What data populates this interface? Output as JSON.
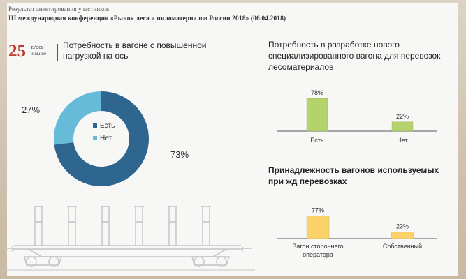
{
  "header": {
    "subtitle": "Результат анкетирования участников",
    "conference": "III международная конференция «Рынок леса и пиломатериалов России 2018» (06.04.2018)"
  },
  "load_badge": {
    "value": "25",
    "unit_line1": "т./ось",
    "unit_line2": "и выше"
  },
  "colors": {
    "dark_blue": "#2f6690",
    "light_blue": "#66bcd8",
    "green": "#b5d36b",
    "yellow": "#fbd26a",
    "red": "#c0392b"
  },
  "icons": [
    "timber-wagon-illustration"
  ],
  "chart_data": [
    {
      "type": "pie",
      "title": "Потребность в вагоне с повышенной нагрузкой на ось",
      "slices": [
        {
          "label": "Есть",
          "value": 73,
          "label_text": "73%",
          "color": "#2f6690"
        },
        {
          "label": "Нет",
          "value": 27,
          "label_text": "27%",
          "color": "#66bcd8"
        }
      ],
      "legend": {
        "placement": "center",
        "items": [
          "Есть",
          "Нет"
        ]
      }
    },
    {
      "type": "bar",
      "title": "Потребность в разработке нового специализированного вагона для перевозок лесоматериалов",
      "categories": [
        "Есть",
        "Нет"
      ],
      "values": [
        78,
        22
      ],
      "value_labels": [
        "78%",
        "22%"
      ],
      "color": "#b5d36b",
      "ylim": [
        0,
        100
      ]
    },
    {
      "type": "bar",
      "title": "Принадлежность вагонов используемых при жд перевозках",
      "categories": [
        "Вагон стороннего оператора",
        "Собственный"
      ],
      "category_lines": [
        [
          "Вагон стороннего",
          "оператора"
        ],
        [
          "Собственный"
        ]
      ],
      "values": [
        77,
        23
      ],
      "value_labels": [
        "77%",
        "23%"
      ],
      "color": "#fbd26a",
      "ylim": [
        0,
        100
      ]
    }
  ]
}
